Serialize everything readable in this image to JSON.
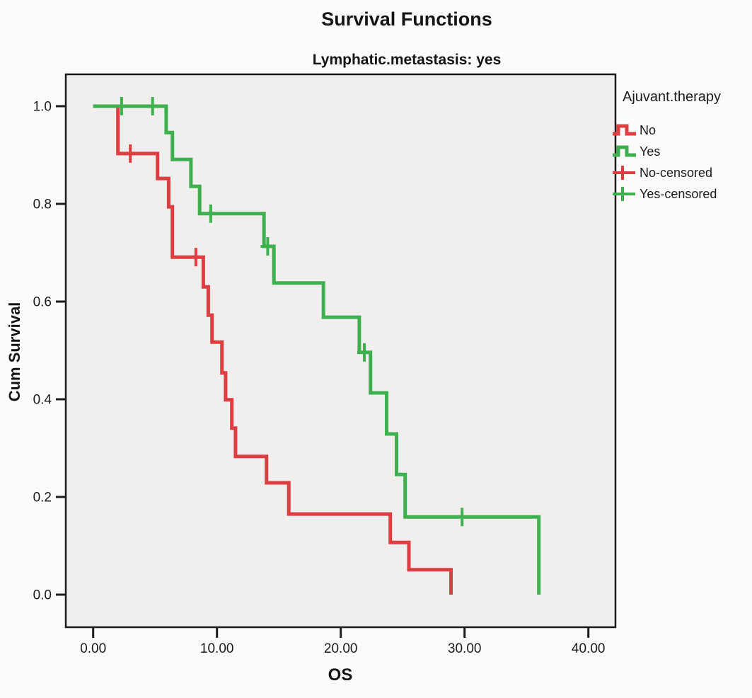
{
  "figure": {
    "title": "Survival Functions",
    "subtitle": "Lymphatic.metastasis: yes"
  },
  "chart_data": {
    "type": "line",
    "subtype": "kaplan-meier-step",
    "title": "Survival Functions",
    "subtitle": "Lymphatic.metastasis: yes",
    "xlabel": "OS",
    "ylabel": "Cum Survival",
    "xlim": [
      -2.2,
      42.2
    ],
    "ylim": [
      -0.065,
      1.065
    ],
    "grid": false,
    "legend_position": "right",
    "plot_bg": "#f0efed",
    "frame_color": "#1c1c1c",
    "tick_label_color": "#1b1b1b",
    "x_ticks": {
      "values": [
        0,
        10,
        20,
        30,
        40
      ],
      "labels": [
        "0.00",
        "10.00",
        "20.00",
        "30.00",
        "40.00"
      ]
    },
    "y_ticks": {
      "values": [
        0.0,
        0.2,
        0.4,
        0.6,
        0.8,
        1.0
      ],
      "labels": [
        "0.0",
        "0.2",
        "0.4",
        "0.6",
        "0.8",
        "1.0"
      ]
    },
    "legend_title": "Ajuvant.therapy",
    "legend": [
      {
        "label": "No"
      },
      {
        "label": "Yes"
      },
      {
        "label": "No-censored"
      },
      {
        "label": "Yes-censored"
      }
    ],
    "series": [
      {
        "name": "No",
        "color": "#dc3e41",
        "steps": [
          [
            0,
            1.0
          ],
          [
            2.0,
            0.903
          ],
          [
            5.2,
            0.852
          ],
          [
            6.1,
            0.794
          ],
          [
            6.4,
            0.691
          ],
          [
            8.9,
            0.63
          ],
          [
            9.3,
            0.572
          ],
          [
            9.6,
            0.517
          ],
          [
            10.4,
            0.454
          ],
          [
            10.7,
            0.399
          ],
          [
            11.2,
            0.341
          ],
          [
            11.5,
            0.283
          ],
          [
            14.0,
            0.229
          ],
          [
            15.8,
            0.165
          ],
          [
            24.0,
            0.107
          ],
          [
            25.5,
            0.051
          ],
          [
            28.9,
            0.0
          ]
        ],
        "censored": [
          [
            3.0,
            0.903
          ],
          [
            8.3,
            0.691
          ]
        ]
      },
      {
        "name": "Yes",
        "color": "#3fb050",
        "steps": [
          [
            0,
            1.0
          ],
          [
            5.9,
            0.946
          ],
          [
            6.4,
            0.891
          ],
          [
            7.9,
            0.836
          ],
          [
            8.6,
            0.78
          ],
          [
            13.8,
            0.713
          ],
          [
            14.6,
            0.638
          ],
          [
            18.6,
            0.568
          ],
          [
            21.5,
            0.496
          ],
          [
            22.4,
            0.413
          ],
          [
            23.7,
            0.329
          ],
          [
            24.5,
            0.246
          ],
          [
            25.2,
            0.159
          ],
          [
            36.0,
            0.0
          ]
        ],
        "censored": [
          [
            2.3,
            1.0
          ],
          [
            4.8,
            1.0
          ],
          [
            9.5,
            0.78
          ],
          [
            14.1,
            0.713
          ],
          [
            21.9,
            0.496
          ],
          [
            29.8,
            0.159
          ]
        ]
      }
    ]
  }
}
